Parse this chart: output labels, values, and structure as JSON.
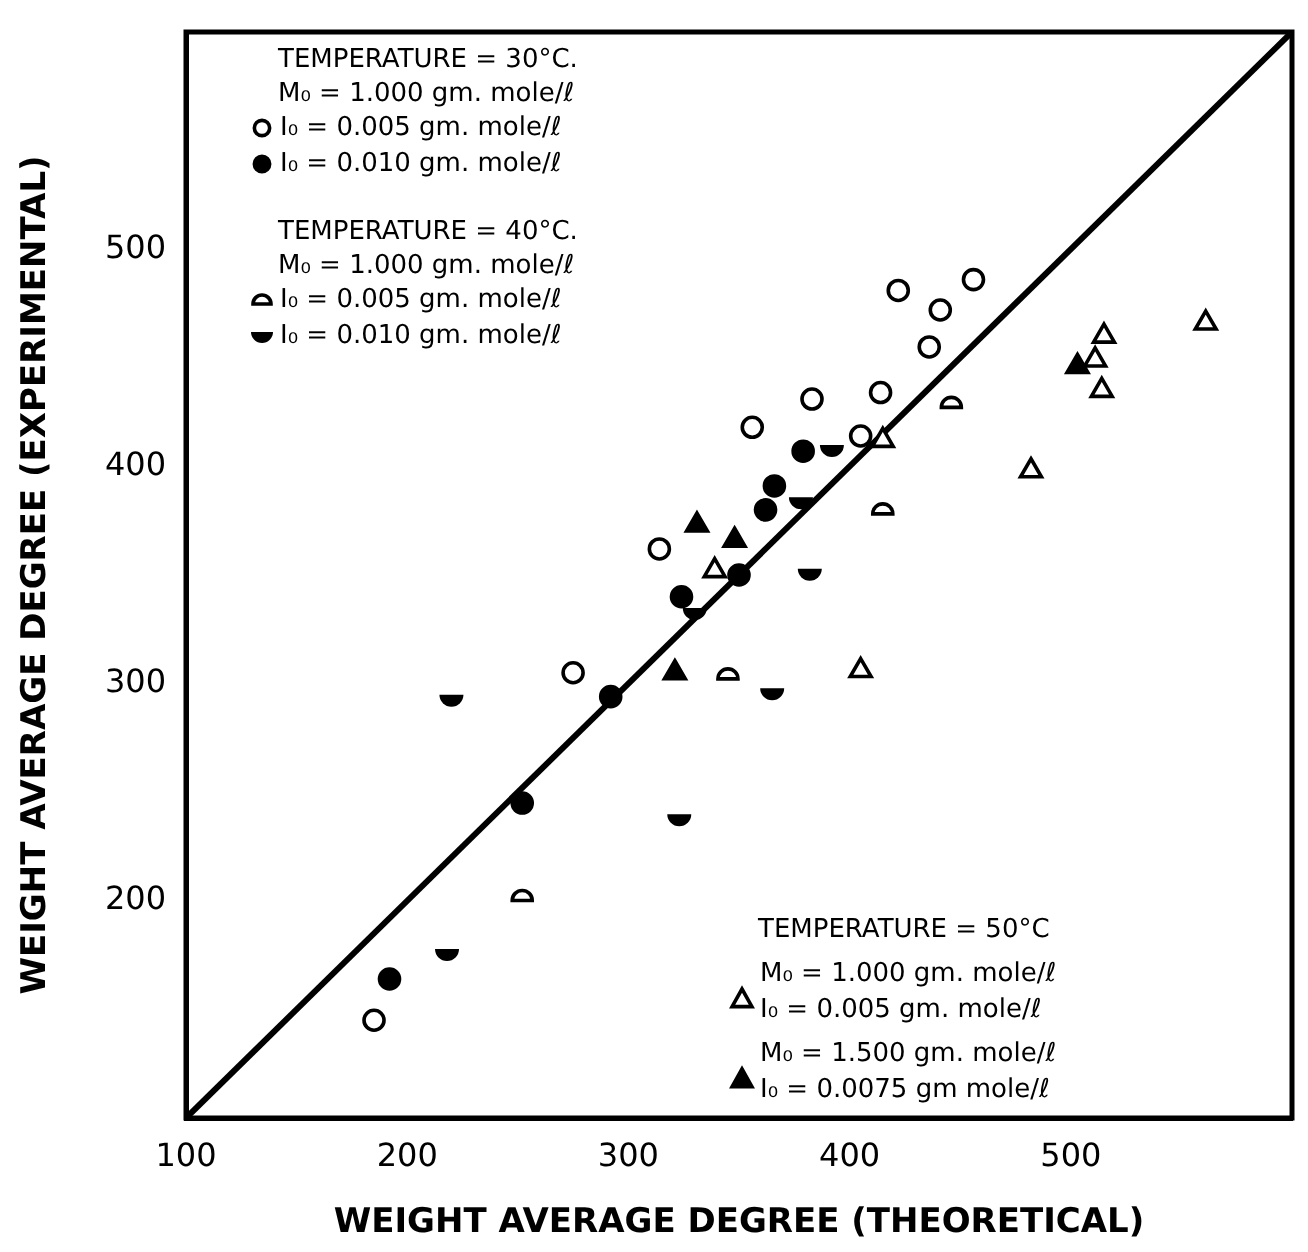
{
  "chart_data": {
    "type": "scatter",
    "xlabel": "WEIGHT AVERAGE DEGREE (THEORETICAL)",
    "ylabel": "WEIGHT AVERAGE DEGREE (EXPERIMENTAL)",
    "xlim": [
      100,
      600
    ],
    "ylim": [
      100,
      600
    ],
    "xticks": [
      100,
      200,
      300,
      400,
      500
    ],
    "yticks": [
      200,
      300,
      400,
      500
    ],
    "grid": false,
    "legend": "left",
    "annotations": [
      "TEMPERATURE = 30°C.",
      "M₀ = 1.000 gm. mole/ℓ",
      "TEMPERATURE = 40°C.",
      "M₀ = 1.000 gm. mole/ℓ",
      "TEMPERATURE = 50°C"
    ],
    "series": [
      {
        "name": "I₀ = 0.005 gm. mole/ℓ",
        "color": "#000000",
        "marker": "circle-open",
        "x": [
          422,
          456,
          441,
          436,
          414,
          383,
          356,
          405,
          314,
          275,
          185
        ],
        "values": [
          481,
          486,
          472,
          455,
          434,
          431,
          418,
          414,
          362,
          305,
          145
        ]
      },
      {
        "name": "I₀ = 0.010 gm. mole/ℓ",
        "color": "#000000",
        "marker": "circle",
        "x": [
          379,
          366,
          362,
          350,
          324,
          292,
          252,
          192
        ],
        "values": [
          407,
          391,
          380,
          350,
          340,
          294,
          245,
          164
        ]
      },
      {
        "name": "I₀ = 0.005 gm. mole/ℓ",
        "color": "#000000",
        "marker": "half-circle-open",
        "x": [
          446,
          415,
          345,
          252
        ],
        "values": [
          429,
          380,
          304,
          202
        ]
      },
      {
        "name": "I₀ = 0.010 gm. mole/ℓ",
        "color": "#000000",
        "marker": "half-circle",
        "x": [
          392,
          378,
          382,
          365,
          330,
          220,
          323,
          218
        ],
        "values": [
          408,
          384,
          351,
          296,
          333,
          293,
          238,
          176
        ]
      },
      {
        "name": "M₀ = 1.000 gm. mole/ℓ\nI₀ = 0.005 gm. mole/ℓ",
        "color": "#000000",
        "marker": "triangle-open",
        "x": [
          561,
          515,
          511,
          514,
          482,
          415,
          339,
          405
        ],
        "values": [
          466,
          460,
          449,
          435,
          398,
          412,
          352,
          306
        ]
      },
      {
        "name": "M₀ = 1.500 gm. mole/ℓ\nI₀ = 0.0075 gm mole/ℓ",
        "color": "#000000",
        "marker": "triangle",
        "x": [
          503,
          331,
          348,
          321
        ],
        "values": [
          446,
          373,
          366,
          305
        ]
      },
      {
        "type": "line",
        "color": "#000000",
        "marker": "none",
        "x": [
          100,
          600
        ],
        "values": [
          100,
          600
        ]
      }
    ]
  }
}
